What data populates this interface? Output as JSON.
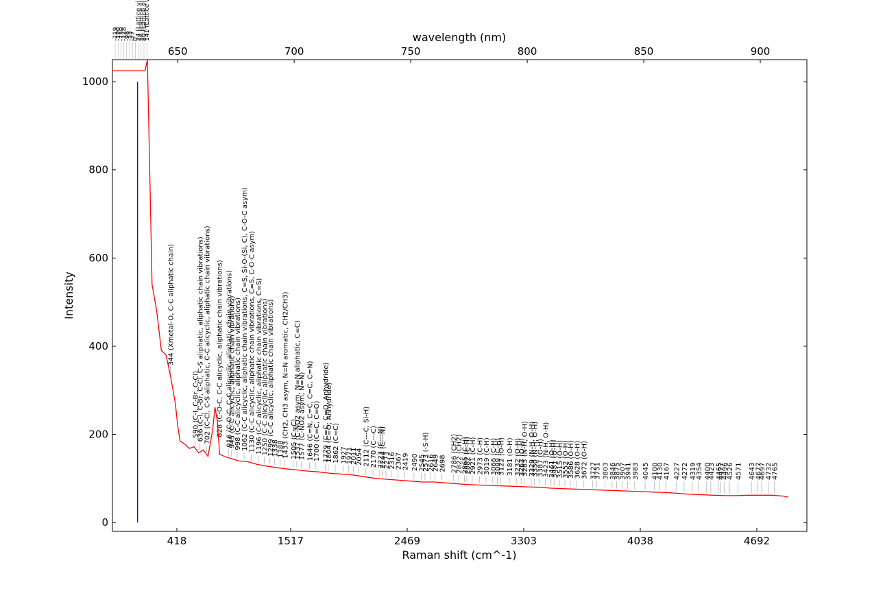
{
  "chart_data": {
    "type": "line",
    "title": "",
    "xlabel": "Raman shift (cm^-1)",
    "ylabel": "Intensity",
    "x2label": "wavelength (nm)",
    "xlim_wavelength_nm": [
      622,
      920
    ],
    "ylim": [
      -20,
      1050
    ],
    "y_ticks": [
      0,
      200,
      400,
      600,
      800,
      1000
    ],
    "x_ticks_raman": [
      "418",
      "1517",
      "2469",
      "3303",
      "4038",
      "4692"
    ],
    "x_ticks_wavelength": [
      "650",
      "700",
      "750",
      "800",
      "850",
      "900"
    ],
    "grid": false,
    "series": [
      {
        "color": "#ff0000",
        "points_wavelength_intensity": [
          [
            622,
            1025
          ],
          [
            636,
            1025
          ],
          [
            637,
            1050
          ],
          [
            638,
            800
          ],
          [
            639,
            540
          ],
          [
            641,
            480
          ],
          [
            643,
            390
          ],
          [
            644,
            385
          ],
          [
            645,
            380
          ],
          [
            647,
            330
          ],
          [
            649,
            270
          ],
          [
            650,
            220
          ],
          [
            651,
            185
          ],
          [
            653,
            178
          ],
          [
            655,
            168
          ],
          [
            657,
            172
          ],
          [
            659,
            158
          ],
          [
            661,
            165
          ],
          [
            663,
            150
          ],
          [
            665,
            210
          ],
          [
            666,
            262
          ],
          [
            667,
            230
          ],
          [
            668,
            155
          ],
          [
            670,
            150
          ],
          [
            673,
            145
          ],
          [
            676,
            140
          ],
          [
            680,
            138
          ],
          [
            684,
            132
          ],
          [
            688,
            128
          ],
          [
            692,
            125
          ],
          [
            696,
            122
          ],
          [
            700,
            120
          ],
          [
            705,
            117
          ],
          [
            710,
            115
          ],
          [
            715,
            112
          ],
          [
            720,
            110
          ],
          [
            725,
            108
          ],
          [
            730,
            104
          ],
          [
            735,
            100
          ],
          [
            740,
            98
          ],
          [
            745,
            96
          ],
          [
            750,
            94
          ],
          [
            755,
            92
          ],
          [
            760,
            92
          ],
          [
            765,
            90
          ],
          [
            770,
            88
          ],
          [
            775,
            86
          ],
          [
            780,
            85
          ],
          [
            785,
            84
          ],
          [
            790,
            83
          ],
          [
            795,
            82
          ],
          [
            800,
            81
          ],
          [
            805,
            80
          ],
          [
            810,
            78
          ],
          [
            815,
            77
          ],
          [
            820,
            76
          ],
          [
            825,
            75
          ],
          [
            830,
            74
          ],
          [
            835,
            73
          ],
          [
            840,
            72
          ],
          [
            845,
            71
          ],
          [
            850,
            70
          ],
          [
            855,
            69
          ],
          [
            860,
            68
          ],
          [
            865,
            66
          ],
          [
            870,
            64
          ],
          [
            875,
            63
          ],
          [
            880,
            62
          ],
          [
            885,
            61
          ],
          [
            890,
            61
          ],
          [
            895,
            62
          ],
          [
            900,
            62
          ],
          [
            905,
            62
          ],
          [
            910,
            60
          ],
          [
            911,
            58
          ],
          [
            912,
            58
          ]
        ]
      },
      {
        "color": "#0000ff",
        "points_wavelength_intensity": [
          [
            632.8,
            0
          ],
          [
            632.8,
            1000
          ]
        ]
      }
    ],
    "annotations": [
      {
        "label": "344 (Xmetal-O, C-C aliphatic chain)",
        "wl": 646.9
      },
      {
        "label": "590 (C-I, C-Br, C-Cl)",
        "wl": 657.5
      },
      {
        "label": "636 (C-I, C-Br, C-Cl, C-S aliphatic, aliphatic chain vibrations)",
        "wl": 659.5
      },
      {
        "label": "702 (C-Cl, C-S aliphatic, C-C alicyclic, aliphatic chain vibrations)",
        "wl": 662.4
      },
      {
        "label": "828 (C-O-C, C-C alicyclic, aliphatic chain vibrations)",
        "wl": 667.8
      },
      {
        "label": "916 (C-O-C, C-C alicyclic, aliphatic chain vibrations)",
        "wl": 671.8
      },
      {
        "label": "945 (C-C alicyclic, aliphatic chain vibrations)",
        "wl": 673.1
      },
      {
        "label": "998 (C-C alicyclic, aliphatic chain vibrations)",
        "wl": 675.5
      },
      {
        "label": "1062 (C-C alicyclic, aliphatic chain vibrations, C=S, Si-O-(Si, C), C-O-C asym)",
        "wl": 678.5
      },
      {
        "label": "1130 (C-C alicyclic, aliphatic chain vibrations, C=S, C-O-C asym)",
        "wl": 681.6
      },
      {
        "label": "1196 (C-C alicyclic, aliphatic chain vibrations, C=S)",
        "wl": 684.6
      },
      {
        "label": "1250 (C-C alicyclic, aliphatic chain vibrations)",
        "wl": 687.2
      },
      {
        "label": "1299 (C-C alicyclic, aliphatic chain vibrations)",
        "wl": 689.6
      },
      {
        "label": "1338",
        "wl": 691.5
      },
      {
        "label": "1388",
        "wl": 693.9
      },
      {
        "label": "1433 (CH2, CH3 asym, N=N aromatic, CH2/CH3)",
        "wl": 696.0
      },
      {
        "label": "1505 (C=C)",
        "wl": 699.6
      },
      {
        "label": "1537 (C-NO2 asym, N=N aliphatic, C=C)",
        "wl": 701.1
      },
      {
        "label": "1577 (C-NO2 asym, N=N)",
        "wl": 703.1
      },
      {
        "label": "1646 (C=N, C=C, C=C, C=N)",
        "wl": 706.6
      },
      {
        "label": "1700 (C=C, C=O)",
        "wl": 709.3
      },
      {
        "label": "1779 (C=C, C=O, Anhydride)",
        "wl": 713.3
      },
      {
        "label": "1804 (C=O, Anhydride)",
        "wl": 714.6
      },
      {
        "label": "1862 (C=C)",
        "wl": 717.6
      },
      {
        "label": "1927",
        "wl": 721.0
      },
      {
        "label": "1971",
        "wl": 723.3
      },
      {
        "label": "2011",
        "wl": 725.3
      },
      {
        "label": "2054",
        "wl": 727.6
      },
      {
        "label": "2112 (C---C, Si-H)",
        "wl": 730.7
      },
      {
        "label": "2170 (C---C)",
        "wl": 733.8
      },
      {
        "label": "2223 (C---N)",
        "wl": 736.7
      },
      {
        "label": "2244 (C---N)",
        "wl": 737.8
      },
      {
        "label": "2273",
        "wl": 739.4
      },
      {
        "label": "2316",
        "wl": 741.7
      },
      {
        "label": "2367",
        "wl": 744.5
      },
      {
        "label": "2419",
        "wl": 747.4
      },
      {
        "label": "2490",
        "wl": 751.4
      },
      {
        "label": "2545",
        "wl": 754.5
      },
      {
        "label": "2573 (-S-H)",
        "wl": 756.1
      },
      {
        "label": "2616",
        "wl": 758.5
      },
      {
        "label": "2649",
        "wl": 760.4
      },
      {
        "label": "2698",
        "wl": 763.3
      },
      {
        "label": "2786 (CH2)",
        "wl": 768.4
      },
      {
        "label": "2822 (CH2)",
        "wl": 770.6
      },
      {
        "label": "2865 (C-H)",
        "wl": 773.1
      },
      {
        "label": "2882 (C-H)",
        "wl": 774.1
      },
      {
        "label": "2921 (C-H)",
        "wl": 776.4
      },
      {
        "label": "2973 (C-H)",
        "wl": 779.5
      },
      {
        "label": "3019 (C-H)",
        "wl": 782.3
      },
      {
        "label": "3066 (C-H)",
        "wl": 785.2
      },
      {
        "label": "3099 (C-H)",
        "wl": 787.2
      },
      {
        "label": "3122 (O-H)",
        "wl": 788.6
      },
      {
        "label": "3181 (O-H)",
        "wl": 792.3
      },
      {
        "label": "3232 (O-H)",
        "wl": 795.5
      },
      {
        "label": "3263 (O-H)",
        "wl": 797.4
      },
      {
        "label": "3283 (N-H, O-H)",
        "wl": 798.7
      },
      {
        "label": "3329 (N-H, O-H)",
        "wl": 801.7
      },
      {
        "label": "3350 (N-H, O-H)",
        "wl": 803.0
      },
      {
        "label": "3387 (O-H)",
        "wl": 805.4
      },
      {
        "label": "3423 (N-H, O-H)",
        "wl": 807.7
      },
      {
        "label": "3461 (O-H)",
        "wl": 810.2
      },
      {
        "label": "3481 (O-H)",
        "wl": 811.5
      },
      {
        "label": "3515 (O-H)",
        "wl": 813.8
      },
      {
        "label": "3552 (O-H)",
        "wl": 816.2
      },
      {
        "label": "3586 (O-H)",
        "wl": 818.5
      },
      {
        "label": "3628 (O-H)",
        "wl": 821.3
      },
      {
        "label": "3672 (O-H)",
        "wl": 824.3
      },
      {
        "label": "3727",
        "wl": 828.1
      },
      {
        "label": "3751",
        "wl": 829.8
      },
      {
        "label": "3803",
        "wl": 833.4
      },
      {
        "label": "3846",
        "wl": 836.4
      },
      {
        "label": "3875",
        "wl": 838.4
      },
      {
        "label": "3907",
        "wl": 840.7
      },
      {
        "label": "3941",
        "wl": 843.1
      },
      {
        "label": "3983",
        "wl": 846.1
      },
      {
        "label": "4045",
        "wl": 850.6
      },
      {
        "label": "4100",
        "wl": 854.6
      },
      {
        "label": "4130",
        "wl": 856.8
      },
      {
        "label": "4167",
        "wl": 859.5
      },
      {
        "label": "4227",
        "wl": 863.9
      },
      {
        "label": "4272",
        "wl": 867.3
      },
      {
        "label": "4319",
        "wl": 870.8
      },
      {
        "label": "4354",
        "wl": 873.5
      },
      {
        "label": "4400",
        "wl": 877.0
      },
      {
        "label": "4423",
        "wl": 878.8
      },
      {
        "label": "4465",
        "wl": 882.0
      },
      {
        "label": "4477",
        "wl": 883.0
      },
      {
        "label": "4496",
        "wl": 884.5
      },
      {
        "label": "4526",
        "wl": 886.8
      },
      {
        "label": "4571",
        "wl": 890.4
      },
      {
        "label": "4643",
        "wl": 896.2
      },
      {
        "label": "4677",
        "wl": 898.9
      },
      {
        "label": "4697",
        "wl": 900.6
      },
      {
        "label": "4732",
        "wl": 903.4
      },
      {
        "label": "4765",
        "wl": 906.1
      }
    ],
    "top_cluster_labels": [
      "-219",
      "-190",
      "-150",
      "-128",
      "-98",
      "-53",
      "-27",
      "0",
      "24 (Lattice vibrations)",
      "56 (Lattice vibrations)",
      "80 (Lattice vibrations)",
      "141 (Lattice vibrations)"
    ]
  }
}
